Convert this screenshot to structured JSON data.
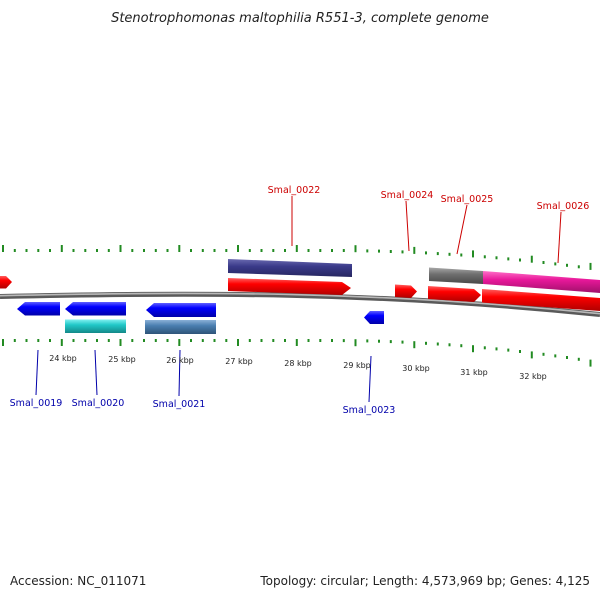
{
  "title": "Stenotrophomonas maltophilia R551-3, complete genome",
  "footer": {
    "accession": "Accession: NC_011071",
    "summary": "Topology: circular; Length: 4,573,969 bp; Genes: 4,125"
  },
  "colors": {
    "forward_gene": "#ff0000",
    "reverse_gene": "#0000ff",
    "backbone": "#808080",
    "tick": "#228b22",
    "forward_label": "#cc0000",
    "reverse_label": "#0000aa"
  },
  "axis": {
    "unit": "kbp",
    "major_ticks_kbp": [
      24,
      25,
      26,
      27,
      28,
      29,
      30,
      31,
      32
    ],
    "tick_labels": [
      "24 kbp",
      "25 kbp",
      "26 kbp",
      "27 kbp",
      "28 kbp",
      "29 kbp",
      "30 kbp",
      "31 kbp",
      "32 kbp"
    ]
  },
  "genes_forward": [
    {
      "label": "Smal_0022",
      "color": "#ff0000"
    },
    {
      "label": "Smal_0024",
      "color": "#ff0000"
    },
    {
      "label": "Smal_0025",
      "color": "#ff0000"
    },
    {
      "label": "Smal_0026",
      "color": "#ff0000"
    }
  ],
  "genes_reverse": [
    {
      "label": "Smal_0019",
      "color": "#0000ff"
    },
    {
      "label": "Smal_0020",
      "color": "#0000ff"
    },
    {
      "label": "Smal_0021",
      "color": "#0000ff"
    },
    {
      "label": "Smal_0023",
      "color": "#0000ff"
    }
  ],
  "features": [
    {
      "name": "feature-navy",
      "color": "#3b3b8a"
    },
    {
      "name": "feature-cyan",
      "color": "#20c8c8"
    },
    {
      "name": "feature-steelblue",
      "color": "#4a7fb0"
    },
    {
      "name": "feature-gray",
      "color": "#707070"
    },
    {
      "name": "feature-magenta",
      "color": "#e8189a"
    }
  ]
}
